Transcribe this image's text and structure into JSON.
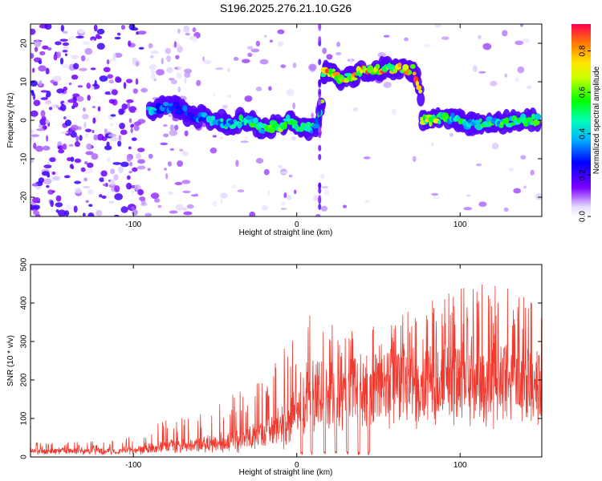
{
  "title": "S196.2025.276.21.10.G26",
  "chart_data": [
    {
      "type": "heatmap",
      "name": "spectrogram",
      "xlabel": "Height of straight line (km)",
      "ylabel": "Frequency (Hz)",
      "xlim": [
        -163,
        150
      ],
      "ylim": [
        -25,
        25
      ],
      "xticks": [
        -100,
        0,
        100
      ],
      "yticks": [
        -20,
        -10,
        0,
        10,
        20
      ],
      "colorbar": {
        "label": "Normalized spectral amplitude",
        "range": [
          0,
          0.93
        ],
        "ticks": [
          0.0,
          0.2,
          0.4,
          0.6,
          0.8
        ]
      },
      "ridge": [
        {
          "x": -90,
          "f": 2.5,
          "a": 0.5
        },
        {
          "x": -75,
          "f": 3.5,
          "a": 0.35
        },
        {
          "x": -60,
          "f": 1.0,
          "a": 0.35
        },
        {
          "x": -50,
          "f": 0.0,
          "a": 0.45
        },
        {
          "x": -40,
          "f": -1.0,
          "a": 0.5
        },
        {
          "x": -30,
          "f": 0.0,
          "a": 0.55
        },
        {
          "x": -20,
          "f": -2.0,
          "a": 0.6
        },
        {
          "x": -10,
          "f": -1.5,
          "a": 0.65
        },
        {
          "x": -5,
          "f": 0.0,
          "a": 0.6
        },
        {
          "x": 5,
          "f": -2.0,
          "a": 0.55
        },
        {
          "x": 12,
          "f": -2.0,
          "a": 0.5
        },
        {
          "x": 20,
          "f": 12.5,
          "a": 0.85
        },
        {
          "x": 30,
          "f": 11.0,
          "a": 0.8
        },
        {
          "x": 45,
          "f": 13.0,
          "a": 0.85
        },
        {
          "x": 60,
          "f": 13.5,
          "a": 0.85
        },
        {
          "x": 72,
          "f": 13.0,
          "a": 0.85
        },
        {
          "x": 80,
          "f": 0.0,
          "a": 0.8
        },
        {
          "x": 95,
          "f": 0.5,
          "a": 0.6
        },
        {
          "x": 110,
          "f": -1.0,
          "a": 0.55
        },
        {
          "x": 125,
          "f": -0.5,
          "a": 0.6
        },
        {
          "x": 140,
          "f": 0.0,
          "a": 0.65
        },
        {
          "x": 148,
          "f": 0.0,
          "a": 0.6
        }
      ]
    },
    {
      "type": "line",
      "name": "snr",
      "xlabel": "Height of straight line (km)",
      "ylabel": "SNR (10 * v/v)",
      "xlim": [
        -163,
        150
      ],
      "ylim": [
        0,
        500
      ],
      "xticks": [
        -100,
        0,
        100
      ],
      "yticks": [
        0,
        100,
        200,
        300,
        400,
        500
      ],
      "color": "#f03a2f",
      "envelope": [
        {
          "x": -163,
          "base": 15,
          "peak": 35
        },
        {
          "x": -110,
          "base": 15,
          "peak": 40
        },
        {
          "x": -80,
          "base": 20,
          "peak": 90
        },
        {
          "x": -60,
          "base": 20,
          "peak": 100
        },
        {
          "x": -40,
          "base": 25,
          "peak": 150
        },
        {
          "x": -20,
          "base": 40,
          "peak": 200
        },
        {
          "x": -5,
          "base": 60,
          "peak": 300
        },
        {
          "x": 5,
          "base": 150,
          "peak": 360
        },
        {
          "x": 20,
          "base": 200,
          "peak": 340
        },
        {
          "x": 40,
          "base": 220,
          "peak": 320
        },
        {
          "x": 60,
          "base": 220,
          "peak": 350
        },
        {
          "x": 80,
          "base": 230,
          "peak": 400
        },
        {
          "x": 100,
          "base": 220,
          "peak": 420
        },
        {
          "x": 120,
          "base": 200,
          "peak": 430
        },
        {
          "x": 140,
          "base": 200,
          "peak": 400
        },
        {
          "x": 150,
          "base": 200,
          "peak": 380
        }
      ],
      "dropouts": [
        3,
        9,
        17,
        24,
        31,
        38,
        44
      ]
    }
  ]
}
